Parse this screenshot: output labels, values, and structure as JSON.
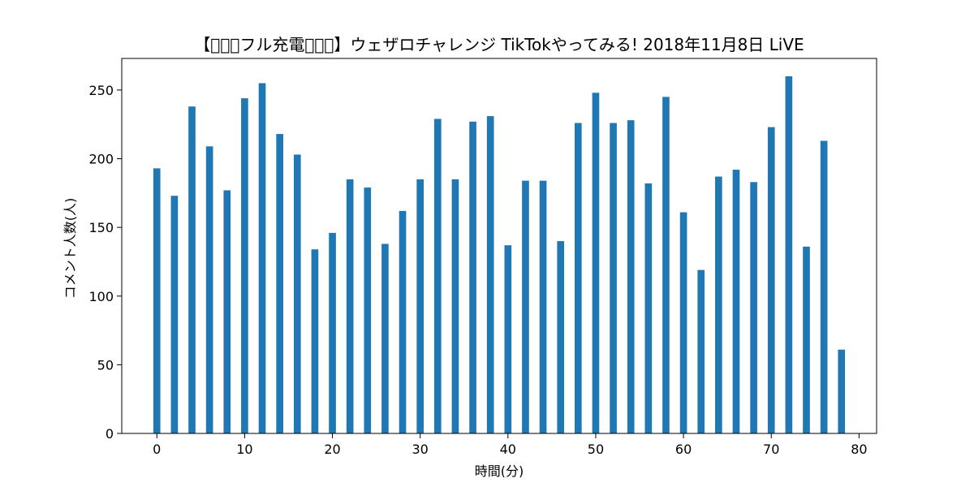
{
  "chart_data": {
    "type": "bar",
    "title": "【􂄄􂄄􂄄フル充電􂄄􂄄􂄄】ウェザロチャレンジ TikTokやってみる! 2018年11月8日 LiVE",
    "xlabel": "時間(分)",
    "ylabel": "コメント人数(人)",
    "xlim": [
      -4,
      82
    ],
    "ylim": [
      0,
      273
    ],
    "xticks": [
      0,
      10,
      20,
      30,
      40,
      50,
      60,
      70,
      80
    ],
    "yticks": [
      0,
      50,
      100,
      150,
      200,
      250
    ],
    "grid": false,
    "legend": "none",
    "bar_color": "#1f77b4",
    "bar_width": 0.8,
    "x": [
      0,
      2,
      4,
      6,
      8,
      10,
      12,
      14,
      16,
      18,
      20,
      22,
      24,
      26,
      28,
      30,
      32,
      34,
      36,
      38,
      40,
      42,
      44,
      46,
      48,
      50,
      52,
      54,
      56,
      58,
      60,
      62,
      64,
      66,
      68,
      70,
      72,
      74,
      76,
      78
    ],
    "values": [
      193,
      173,
      238,
      209,
      177,
      244,
      255,
      218,
      203,
      134,
      146,
      185,
      179,
      138,
      162,
      185,
      229,
      185,
      227,
      231,
      137,
      184,
      184,
      140,
      226,
      248,
      226,
      228,
      182,
      245,
      161,
      119,
      187,
      192,
      183,
      223,
      260,
      136,
      213,
      61
    ]
  }
}
